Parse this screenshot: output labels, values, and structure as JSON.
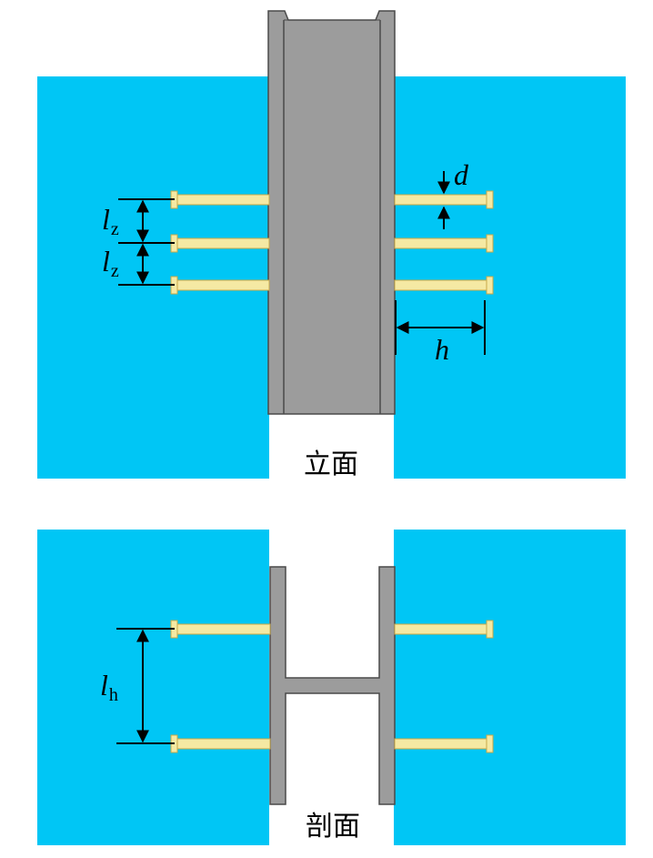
{
  "colors": {
    "concrete": "#00c6f5",
    "steel": "#9c9c9c",
    "steel_edge": "#4a4a4a",
    "stud": "#f5e9a3",
    "stud_edge": "#c9a94a",
    "dim": "#000000"
  },
  "elevation": {
    "caption": "立面",
    "dims": {
      "lz_1": {
        "main": "l",
        "sub": "z"
      },
      "lz_2": {
        "main": "l",
        "sub": "z"
      },
      "d": "d",
      "h": "h"
    }
  },
  "section": {
    "caption": "剖面",
    "dims": {
      "lh": {
        "main": "l",
        "sub": "h"
      }
    }
  }
}
